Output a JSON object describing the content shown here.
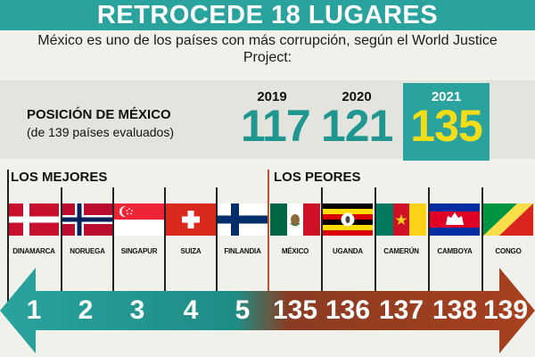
{
  "title": "RETROCEDE 18 LUGARES",
  "subtitle": "México es uno de los países con más corrupción, según el World Justice Project:",
  "position": {
    "label": "POSICIÓN DE MÉXICO",
    "sublabel": "(de 139 países evaluados)"
  },
  "years": [
    {
      "year": "2019",
      "value": "117"
    },
    {
      "year": "2020",
      "value": "121"
    },
    {
      "year": "2021",
      "value": "135"
    }
  ],
  "best_label": "LOS MEJORES",
  "worst_label": "LOS PEORES",
  "best": [
    {
      "name": "DINAMARCA",
      "rank": "1",
      "flag": "denmark-flag"
    },
    {
      "name": "NORUEGA",
      "rank": "2",
      "flag": "norway-flag"
    },
    {
      "name": "SINGAPUR",
      "rank": "3",
      "flag": "singapore-flag"
    },
    {
      "name": "SUIZA",
      "rank": "4",
      "flag": "switzerland-flag"
    },
    {
      "name": "FINLANDIA",
      "rank": "5",
      "flag": "finland-flag"
    }
  ],
  "worst": [
    {
      "name": "MÉXICO",
      "rank": "135",
      "flag": "mexico-flag"
    },
    {
      "name": "UGANDA",
      "rank": "136",
      "flag": "uganda-flag"
    },
    {
      "name": "CAMERÚN",
      "rank": "137",
      "flag": "cameroon-flag"
    },
    {
      "name": "CAMBOYA",
      "rank": "138",
      "flag": "cambodia-flag"
    },
    {
      "name": "CONGO",
      "rank": "139",
      "flag": "congo-flag"
    }
  ],
  "colors": {
    "teal": "#2aa39e",
    "rust": "#a8401f",
    "highlight": "#f2dd16"
  }
}
